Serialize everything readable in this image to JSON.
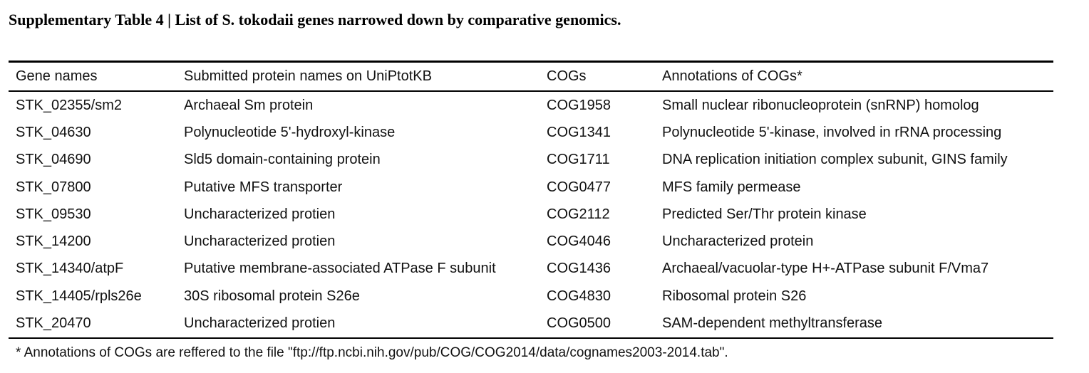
{
  "title": "Supplementary Table 4 | List of S. tokodaii genes narrowed down by comparative genomics.",
  "table": {
    "headers": [
      "Gene names",
      "Submitted protein names on UniPtotKB",
      "COGs",
      "Annotations of COGs*"
    ],
    "rows": [
      [
        "STK_02355/sm2",
        "Archaeal Sm protein",
        "COG1958",
        "Small nuclear ribonucleoprotein (snRNP) homolog"
      ],
      [
        "STK_04630",
        "Polynucleotide 5'-hydroxyl-kinase",
        "COG1341",
        "Polynucleotide 5'-kinase, involved in rRNA processing"
      ],
      [
        "STK_04690",
        "Sld5 domain-containing protein",
        "COG1711",
        "DNA replication initiation complex subunit, GINS family"
      ],
      [
        "STK_07800",
        "Putative MFS transporter",
        "COG0477",
        "MFS family permease"
      ],
      [
        "STK_09530",
        "Uncharacterized protien",
        "COG2112",
        "Predicted Ser/Thr protein kinase"
      ],
      [
        "STK_14200",
        "Uncharacterized protien",
        "COG4046",
        "Uncharacterized protein"
      ],
      [
        "STK_14340/atpF",
        "Putative membrane-associated ATPase F subunit",
        "COG1436",
        "Archaeal/vacuolar-type H+-ATPase subunit F/Vma7"
      ],
      [
        "STK_14405/rpls26e",
        "30S ribosomal protein S26e",
        "COG4830",
        "Ribosomal protein S26"
      ],
      [
        "STK_20470",
        "Uncharacterized protien",
        "COG0500",
        "SAM-dependent methyltransferase"
      ]
    ]
  },
  "footnote": "* Annotations of COGs are reffered to the file \"ftp://ftp.ncbi.nih.gov/pub/COG/COG2014/data/cognames2003-2014.tab\"."
}
